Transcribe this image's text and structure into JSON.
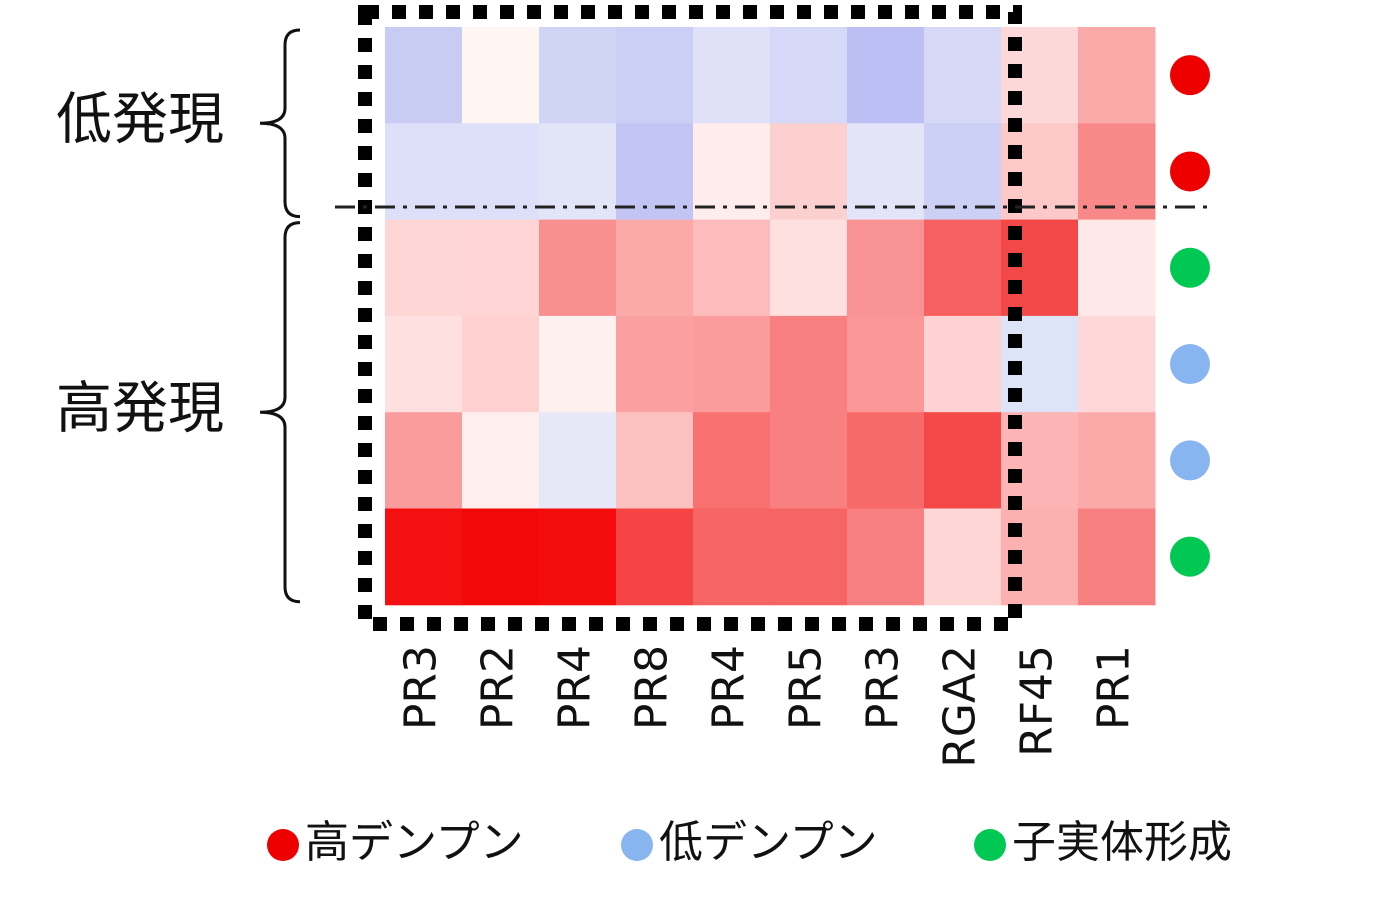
{
  "chart_data": {
    "type": "heatmap",
    "columns": [
      "PR3",
      "PR2",
      "PR4",
      "PR8",
      "PR4",
      "PR5",
      "PR3",
      "RGA2",
      "RF45",
      "PR1"
    ],
    "row_groups": [
      {
        "label": "低発現",
        "rows": [
          {
            "marker_color": "#ee0000",
            "cells": [
              "#c8ccf2",
              "#fff5f3",
              "#d0d4f5",
              "#cbcff5",
              "#e0e0f8",
              "#d5d8f6",
              "#bcbff3",
              "#d6d8f6",
              "#fcd8d8",
              "#fbaaaa"
            ]
          },
          {
            "marker_color": "#ee0000",
            "cells": [
              "#dde0f8",
              "#dde0f8",
              "#e2e4f8",
              "#c2c4f3",
              "#ffecec",
              "#fdd0d0",
              "#e4e4f8",
              "#ccd0f4",
              "#fcc8c8",
              "#f98888"
            ]
          }
        ]
      },
      {
        "label": "高発現",
        "rows": [
          {
            "marker_color": "#00c853",
            "cells": [
              "#fed6d6",
              "#fed4d4",
              "#f99090",
              "#fbaaaa",
              "#fcbcbc",
              "#fee0e0",
              "#f99292",
              "#f66060",
              "#f34848",
              "#fee8e8"
            ]
          },
          {
            "marker_color": "#88b4f0",
            "cells": [
              "#fee0e0",
              "#fed0d0",
              "#fff0f0",
              "#fba0a0",
              "#fa9c9c",
              "#f88080",
              "#fa9696",
              "#fed2d2",
              "#dde4f8",
              "#fed8d8"
            ]
          },
          {
            "marker_color": "#88b4f0",
            "cells": [
              "#fa9c9c",
              "#ffeeee",
              "#e6e8f8",
              "#fcc0c0",
              "#f87070",
              "#f88080",
              "#f76a6a",
              "#f54848",
              "#fcb4b4",
              "#fbaaaa"
            ]
          },
          {
            "marker_color": "#00c853",
            "cells": [
              "#f41010",
              "#f20808",
              "#f40c0c",
              "#f64444",
              "#f76464",
              "#f76464",
              "#f88080",
              "#fed6d6",
              "#fcb0b0",
              "#f98080"
            ]
          }
        ]
      }
    ],
    "legend": [
      {
        "name": "高デンプン",
        "color": "#ee0000"
      },
      {
        "name": "低デンプン",
        "color": "#88b4f0"
      },
      {
        "name": "子実体形成",
        "color": "#00c853"
      }
    ]
  }
}
